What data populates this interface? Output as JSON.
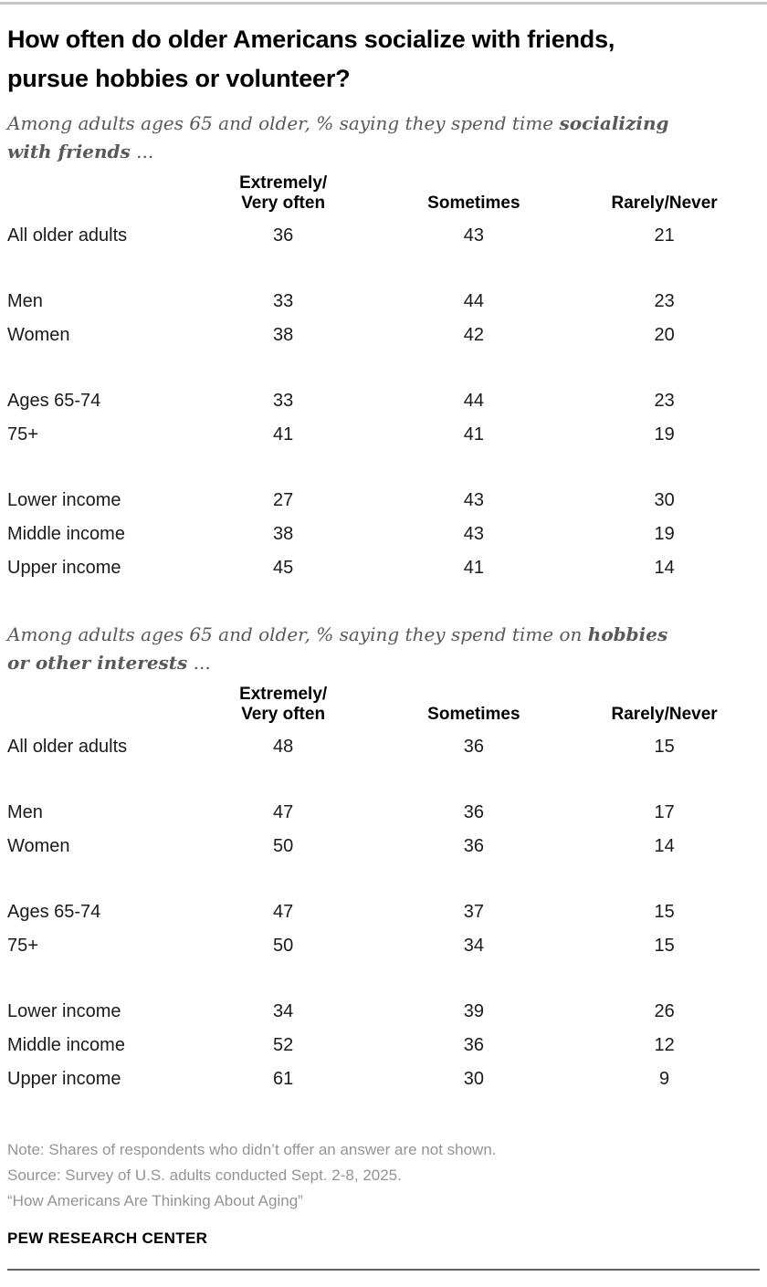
{
  "chart_data": [
    {
      "type": "table",
      "title": "How often do older Americans socialize with friends, pursue hobbies or volunteer?",
      "subtitle": "Among adults ages 65 and older, % saying they spend time socializing with friends ...",
      "columns": [
        "Extremely/Very often",
        "Sometimes",
        "Rarely/Never"
      ],
      "rows": [
        {
          "label": "All older adults",
          "values": [
            36,
            43,
            21
          ]
        },
        {
          "label": "Men",
          "values": [
            33,
            44,
            23
          ]
        },
        {
          "label": "Women",
          "values": [
            38,
            42,
            20
          ]
        },
        {
          "label": "Ages 65-74",
          "values": [
            33,
            44,
            23
          ]
        },
        {
          "label": "75+",
          "values": [
            41,
            41,
            19
          ]
        },
        {
          "label": "Lower income",
          "values": [
            27,
            43,
            30
          ]
        },
        {
          "label": "Middle income",
          "values": [
            38,
            43,
            19
          ]
        },
        {
          "label": "Upper income",
          "values": [
            45,
            41,
            14
          ]
        }
      ]
    },
    {
      "type": "table",
      "subtitle": "Among adults ages 65 and older, % saying they spend time on hobbies or other interests ...",
      "columns": [
        "Extremely/Very often",
        "Sometimes",
        "Rarely/Never"
      ],
      "rows": [
        {
          "label": "All older adults",
          "values": [
            48,
            36,
            15
          ]
        },
        {
          "label": "Men",
          "values": [
            47,
            36,
            17
          ]
        },
        {
          "label": "Women",
          "values": [
            50,
            36,
            14
          ]
        },
        {
          "label": "Ages 65-74",
          "values": [
            47,
            37,
            15
          ]
        },
        {
          "label": "75+",
          "values": [
            50,
            34,
            15
          ]
        },
        {
          "label": "Lower income",
          "values": [
            34,
            39,
            26
          ]
        },
        {
          "label": "Middle income",
          "values": [
            52,
            36,
            12
          ]
        },
        {
          "label": "Upper income",
          "values": [
            61,
            30,
            9
          ]
        }
      ]
    }
  ],
  "header": {
    "title": "How often do older Americans socialize with friends,\npursue hobbies or volunteer?"
  },
  "sections": [
    {
      "subtitle": {
        "prefix": "Among adults ages 65 and older, % saying they spend time ",
        "bold": "socializing with friends",
        "suffix": " ..."
      },
      "table": {
        "columns": [
          "Extremely/\nVery often",
          "Sometimes",
          "Rarely/Never"
        ],
        "groups": [
          [
            {
              "label": "All older adults",
              "values": [
                36,
                43,
                21
              ]
            }
          ],
          [
            {
              "label": "Men",
              "values": [
                33,
                44,
                23
              ]
            },
            {
              "label": "Women",
              "values": [
                38,
                42,
                20
              ]
            }
          ],
          [
            {
              "label": "Ages 65-74",
              "values": [
                33,
                44,
                23
              ]
            },
            {
              "label": "75+",
              "values": [
                41,
                41,
                19
              ]
            }
          ],
          [
            {
              "label": "Lower income",
              "values": [
                27,
                43,
                30
              ]
            },
            {
              "label": "Middle income",
              "values": [
                38,
                43,
                19
              ]
            },
            {
              "label": "Upper income",
              "values": [
                45,
                41,
                14
              ]
            }
          ]
        ]
      }
    },
    {
      "subtitle": {
        "prefix": "Among adults ages 65 and older, % saying they spend time on ",
        "bold": "hobbies or other interests",
        "suffix": " ..."
      },
      "table": {
        "columns": [
          "Extremely/\nVery often",
          "Sometimes",
          "Rarely/Never"
        ],
        "groups": [
          [
            {
              "label": "All older adults",
              "values": [
                48,
                36,
                15
              ]
            }
          ],
          [
            {
              "label": "Men",
              "values": [
                47,
                36,
                17
              ]
            },
            {
              "label": "Women",
              "values": [
                50,
                36,
                14
              ]
            }
          ],
          [
            {
              "label": "Ages 65-74",
              "values": [
                47,
                37,
                15
              ]
            },
            {
              "label": "75+",
              "values": [
                50,
                34,
                15
              ]
            }
          ],
          [
            {
              "label": "Lower income",
              "values": [
                34,
                39,
                26
              ]
            },
            {
              "label": "Middle income",
              "values": [
                52,
                36,
                12
              ]
            },
            {
              "label": "Upper income",
              "values": [
                61,
                30,
                9
              ]
            }
          ]
        ]
      }
    }
  ],
  "footer": {
    "note": "Note: Shares of respondents who didn’t offer an answer are not shown.",
    "source": "Source: Survey of U.S. adults conducted Sept. 2-8, 2025.",
    "quote": "“How Americans Are Thinking About Aging”",
    "brand": "PEW RESEARCH CENTER"
  },
  "colors": {
    "rule_top": "#c6c6c6",
    "rule_bottom": "#606060",
    "title_text": "#000000",
    "subtitle_text": "#595959",
    "table_text": "#1a1a1a",
    "note_text": "#949494"
  }
}
